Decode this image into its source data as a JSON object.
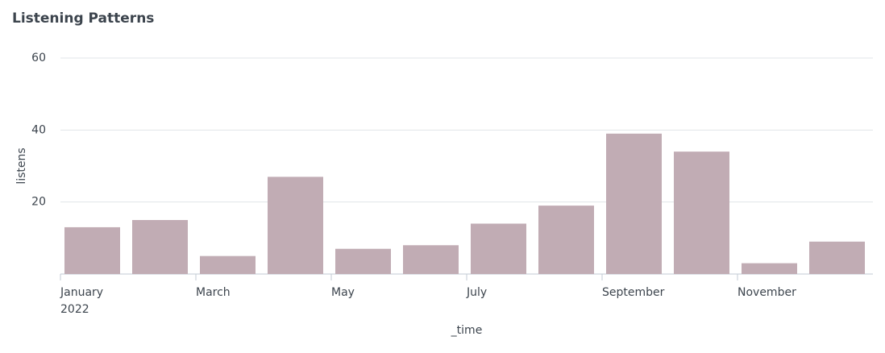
{
  "chart_data": {
    "type": "bar",
    "title": "Listening Patterns",
    "x_label": "_time",
    "y_label": "listens",
    "categories": [
      "January",
      null,
      "March",
      null,
      "May",
      null,
      "July",
      null,
      "September",
      null,
      "November",
      null
    ],
    "x_year_label": "2022",
    "values": [
      13,
      15,
      5,
      27,
      7,
      8,
      14,
      19,
      39,
      34,
      3,
      9
    ],
    "color": "#c1acb4",
    "ylim": [
      0,
      60
    ],
    "yticks": [
      20,
      40,
      60
    ],
    "grid": true
  }
}
